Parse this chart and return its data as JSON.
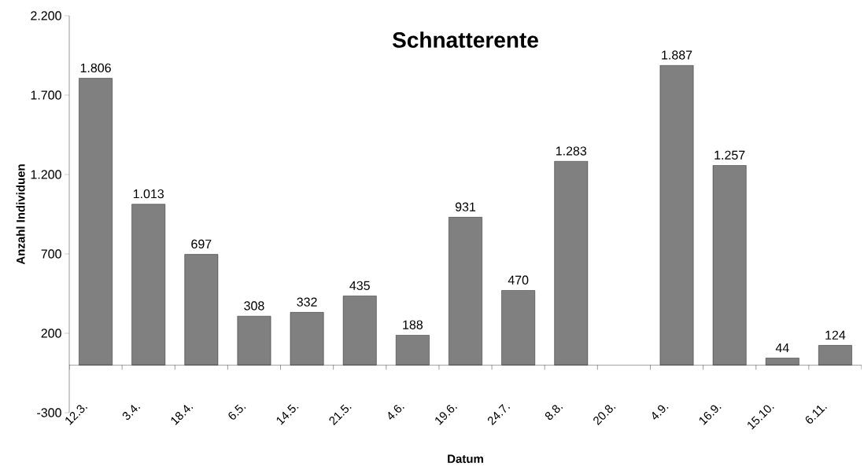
{
  "chart_data": {
    "type": "bar",
    "title": "Schnatterente",
    "xlabel": "Datum",
    "ylabel": "Anzahl Individuen",
    "categories": [
      "12.3.",
      "3.4.",
      "18.4.",
      "6.5.",
      "14.5.",
      "21.5.",
      "4.6.",
      "19.6.",
      "24.7.",
      "8.8.",
      "20.8.",
      "4.9.",
      "16.9.",
      "15.10.",
      "6.11."
    ],
    "values": [
      1806,
      1013,
      697,
      308,
      332,
      435,
      188,
      931,
      470,
      1283,
      null,
      1887,
      1257,
      44,
      124
    ],
    "value_labels": [
      "1.806",
      "1.013",
      "697",
      "308",
      "332",
      "435",
      "188",
      "931",
      "470",
      "1.283",
      null,
      "1.887",
      "1.257",
      "44",
      "124"
    ],
    "color": "#808080",
    "ylim": [
      -300,
      2200
    ],
    "yticks": [
      {
        "value": -300,
        "label": "-300"
      },
      {
        "value": 200,
        "label": "200"
      },
      {
        "value": 700,
        "label": "700"
      },
      {
        "value": 1200,
        "label": "1.200"
      },
      {
        "value": 1700,
        "label": "1.700"
      },
      {
        "value": 2200,
        "label": "2.200"
      }
    ]
  }
}
